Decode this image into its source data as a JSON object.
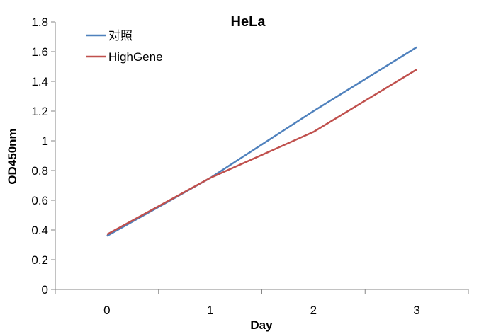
{
  "chart_data": {
    "type": "line",
    "title": "HeLa",
    "xlabel": "Day",
    "ylabel": "OD450nm",
    "categories": [
      "0",
      "1",
      "2",
      "3"
    ],
    "y_ticks": [
      "0",
      "0.2",
      "0.4",
      "0.6",
      "0.8",
      "1",
      "1.2",
      "1.4",
      "1.6",
      "1.8"
    ],
    "ylim": [
      0,
      1.8
    ],
    "grid": false,
    "legend_position": "top-left",
    "series": [
      {
        "name": "对照",
        "color": "#4F81BD",
        "values": [
          0.36,
          0.75,
          1.2,
          1.63
        ]
      },
      {
        "name": "HighGene",
        "color": "#C0504D",
        "values": [
          0.37,
          0.75,
          1.06,
          1.48
        ]
      }
    ]
  }
}
